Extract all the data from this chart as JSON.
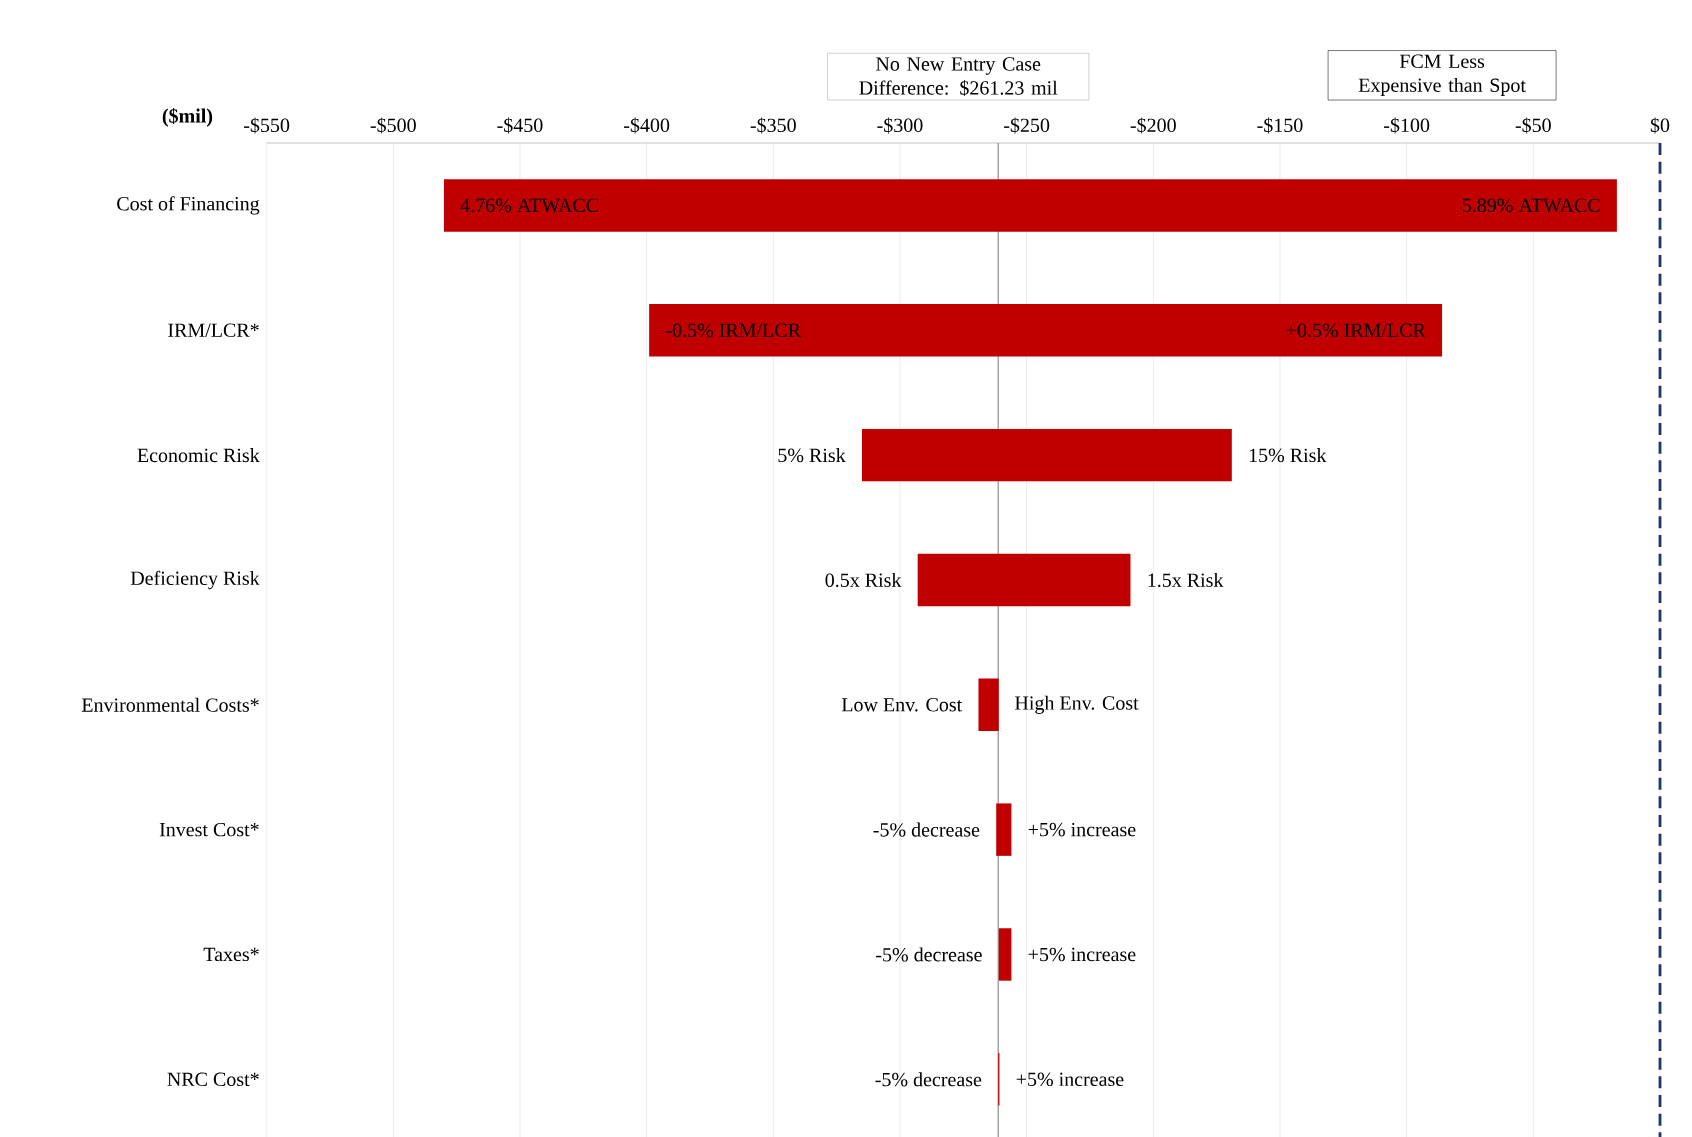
{
  "chart_data": {
    "type": "bar",
    "orientation": "horizontal",
    "xlabel": "($mil)",
    "categories": [
      "Cost of Financing",
      "IRM/LCR*",
      "Economic Risk",
      "Deficiency Risk",
      "Environmental Costs*",
      "Invest Cost*",
      "Taxes*",
      "NRC Cost*"
    ],
    "base": [
      -480,
      -399,
      -315,
      -293,
      -269,
      -262,
      -261,
      -261.23
    ],
    "values": [
      463,
      313,
      146,
      84,
      8,
      6,
      5,
      0.5
    ],
    "color": "#c00000",
    "xlim": [
      -550,
      0
    ],
    "xticks": [
      {
        "value": -550,
        "label": "-$550"
      },
      {
        "value": -500,
        "label": "-$500"
      },
      {
        "value": -450,
        "label": "-$450"
      },
      {
        "value": -400,
        "label": "-$400"
      },
      {
        "value": -350,
        "label": "-$350"
      },
      {
        "value": -300,
        "label": "-$300"
      },
      {
        "value": -250,
        "label": "-$250"
      },
      {
        "value": -200,
        "label": "-$200"
      },
      {
        "value": -150,
        "label": "-$150"
      },
      {
        "value": -100,
        "label": "-$100"
      },
      {
        "value": -50,
        "label": "-$50"
      },
      {
        "value": 0,
        "label": "$0"
      }
    ],
    "grid": "x",
    "ref_lines": [
      {
        "axis": "x",
        "value": -261.23,
        "color": "#7f7f7f",
        "line_style": "solid"
      },
      {
        "axis": "x",
        "value": 0,
        "color": "#1f3864",
        "line_style": "dashed"
      }
    ],
    "annotations": [
      "No New Entry Case Difference: $261.23 mil",
      "FCM Less Expensive than Spot",
      {
        "text": "4.76% ATWACC",
        "x": -480,
        "y": "Cost of Financing"
      },
      {
        "text": "5.89% ATWACC",
        "x": -17,
        "y": "Cost of Financing"
      },
      {
        "text": "-0.5% IRM/LCR",
        "x": -399,
        "y": "IRM/LCR*"
      },
      {
        "text": "+0.5% IRM/LCR",
        "x": -86,
        "y": "IRM/LCR*"
      },
      {
        "text": "5% Risk",
        "x": -315,
        "y": "Economic Risk"
      },
      {
        "text": "15% Risk",
        "x": -169,
        "y": "Economic Risk"
      },
      {
        "text": "0.5x Risk",
        "x": -293,
        "y": "Deficiency Risk"
      },
      {
        "text": "1.5x Risk",
        "x": -209,
        "y": "Deficiency Risk"
      },
      {
        "text": "Low Env. Cost",
        "x": -269,
        "y": "Environmental Costs*"
      },
      {
        "text": "High Env. Cost",
        "x": -261.23,
        "y": "Environmental Costs*"
      },
      {
        "text": "-5% decrease",
        "x": -262,
        "y": "Invest Cost*"
      },
      {
        "text": "+5% increase",
        "x": -256,
        "y": "Invest Cost*"
      },
      {
        "text": "-5% decrease",
        "x": -261,
        "y": "Taxes*"
      },
      {
        "text": "+5% increase",
        "x": -256,
        "y": "Taxes*"
      },
      {
        "text": "-5% decrease",
        "x": -261.23,
        "y": "NRC Cost*"
      },
      {
        "text": "+5% increase",
        "x": -260.73,
        "y": "NRC Cost*"
      }
    ]
  }
}
